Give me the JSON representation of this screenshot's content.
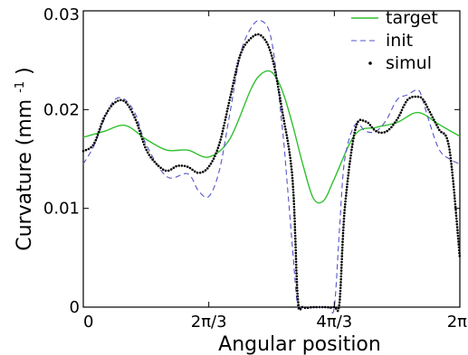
{
  "chart_data": {
    "type": "line",
    "xlabel": "Angular position",
    "ylabel_main": "Curvature (mm",
    "ylabel_sup": "-1",
    "ylabel_close": ")",
    "xlim": [
      0,
      6.2832
    ],
    "ylim": [
      0,
      0.03
    ],
    "x_ticks": [
      {
        "value": 0,
        "label": "0"
      },
      {
        "value": 2.0944,
        "label": "2π/3"
      },
      {
        "value": 4.1888,
        "label": "4π/3"
      },
      {
        "value": 6.2832,
        "label": "2π"
      }
    ],
    "y_ticks": [
      {
        "value": 0,
        "label": "0"
      },
      {
        "value": 0.01,
        "label": "0.01"
      },
      {
        "value": 0.02,
        "label": "0.02"
      },
      {
        "value": 0.03,
        "label": "0.03"
      }
    ],
    "legend_position": "top-right",
    "series": [
      {
        "name": "target",
        "style": "solid",
        "color": "#2fc12f",
        "x": [
          0,
          0.349,
          0.698,
          1.047,
          1.396,
          1.745,
          2.094,
          2.443,
          2.792,
          2.967,
          3.142,
          3.316,
          3.491,
          3.665,
          3.84,
          4.014,
          4.189,
          4.538,
          4.887,
          5.236,
          5.585,
          5.934,
          6.283
        ],
        "y": [
          0.0172,
          0.0178,
          0.0184,
          0.017,
          0.0159,
          0.0159,
          0.0152,
          0.017,
          0.022,
          0.0236,
          0.0238,
          0.022,
          0.0185,
          0.0144,
          0.011,
          0.0108,
          0.013,
          0.0175,
          0.0182,
          0.0187,
          0.0197,
          0.0185,
          0.0173
        ]
      },
      {
        "name": "init",
        "style": "dashed",
        "color": "#5555c8",
        "x": [
          0,
          0.175,
          0.349,
          0.524,
          0.698,
          0.873,
          1.047,
          1.396,
          1.745,
          1.92,
          2.094,
          2.269,
          2.443,
          2.618,
          2.792,
          2.967,
          3.142,
          3.316,
          3.403,
          3.491,
          3.578,
          3.665,
          3.84,
          4.014,
          4.101,
          4.189,
          4.276,
          4.363,
          4.538,
          4.712,
          4.887,
          5.061,
          5.236,
          5.411,
          5.585,
          5.672,
          5.76,
          5.934,
          6.109,
          6.283
        ],
        "y": [
          0.0145,
          0.0163,
          0.019,
          0.021,
          0.021,
          0.0195,
          0.0165,
          0.0132,
          0.0135,
          0.0118,
          0.0112,
          0.0138,
          0.0195,
          0.0255,
          0.0282,
          0.029,
          0.027,
          0.0185,
          0.0125,
          0.006,
          0.0,
          0.0,
          0.0,
          0.0,
          0.0,
          0.0,
          0.008,
          0.015,
          0.0185,
          0.0178,
          0.0178,
          0.019,
          0.021,
          0.0215,
          0.022,
          0.0208,
          0.019,
          0.016,
          0.015,
          0.0145
        ]
      },
      {
        "name": "simul",
        "style": "dotted",
        "color": "#000000",
        "x": [
          0,
          0.175,
          0.349,
          0.524,
          0.698,
          0.873,
          1.047,
          1.222,
          1.396,
          1.571,
          1.745,
          1.92,
          2.094,
          2.269,
          2.443,
          2.618,
          2.792,
          2.967,
          3.142,
          3.316,
          3.491,
          3.578,
          3.665,
          3.84,
          4.014,
          4.189,
          4.276,
          4.363,
          4.538,
          4.712,
          4.887,
          5.061,
          5.236,
          5.411,
          5.585,
          5.672,
          5.76,
          5.934,
          6.109,
          6.283
        ],
        "y": [
          0.0158,
          0.0165,
          0.0192,
          0.0207,
          0.0208,
          0.019,
          0.016,
          0.0145,
          0.0138,
          0.0143,
          0.0142,
          0.0136,
          0.0142,
          0.0165,
          0.021,
          0.0255,
          0.0272,
          0.0275,
          0.0255,
          0.02,
          0.013,
          0.001,
          0.0,
          0.0,
          0.0,
          0.0,
          0.0005,
          0.01,
          0.018,
          0.0188,
          0.0178,
          0.0178,
          0.019,
          0.021,
          0.0213,
          0.021,
          0.02,
          0.018,
          0.016,
          0.005
        ]
      }
    ]
  }
}
